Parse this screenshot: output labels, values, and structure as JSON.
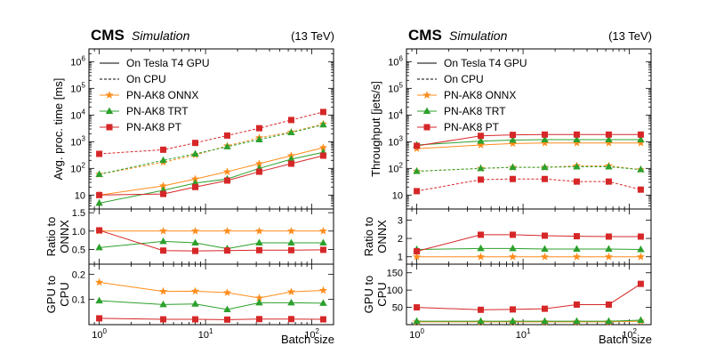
{
  "colors": {
    "onnx": "#ff8c1a",
    "trt": "#2ca02c",
    "pt": "#d62728",
    "axis": "#000000"
  },
  "legend": {
    "gpu": "On Tesla T4 GPU",
    "cpu": "On CPU",
    "onnx": "PN-AK8 ONNX",
    "trt": "PN-AK8 TRT",
    "pt": "PN-AK8 PT"
  },
  "chart_data": [
    {
      "type": "line",
      "header": {
        "experiment": "CMS",
        "label": "Simulation",
        "energy": "(13 TeV)"
      },
      "xlabel": "Batch size",
      "x": [
        1,
        4,
        8,
        16,
        32,
        64,
        128
      ],
      "xlim": [
        0.8,
        160
      ],
      "x_ticks": [
        "10^0",
        "10^1",
        "10^2"
      ],
      "panels": [
        {
          "ylabel": [
            "Avg. proc. time [ms]"
          ],
          "yscale": "log",
          "ylim": [
            3,
            3000000
          ],
          "yticks": [
            "10",
            "10^2",
            "10^3",
            "10^4",
            "10^5",
            "10^6"
          ],
          "series": [
            {
              "name": "PN-AK8 ONNX",
              "device": "gpu",
              "values": [
                10,
                22,
                40,
                75,
                150,
                300,
                600
              ]
            },
            {
              "name": "PN-AK8 TRT",
              "device": "gpu",
              "values": [
                5,
                15,
                28,
                40,
                100,
                220,
                400
              ]
            },
            {
              "name": "PN-AK8 PT",
              "device": "gpu",
              "values": [
                10,
                11,
                20,
                35,
                75,
                150,
                300
              ]
            },
            {
              "name": "PN-AK8 ONNX",
              "device": "cpu",
              "values": [
                60,
                170,
                320,
                700,
                1400,
                2300,
                4600
              ]
            },
            {
              "name": "PN-AK8 TRT",
              "device": "cpu",
              "values": [
                60,
                200,
                350,
                650,
                1200,
                2200,
                4300
              ]
            },
            {
              "name": "PN-AK8 PT",
              "device": "cpu",
              "values": [
                350,
                500,
                900,
                1700,
                3200,
                6500,
                13000
              ]
            }
          ]
        },
        {
          "ylabel": [
            "Ratio to",
            "ONNX"
          ],
          "yscale": "linear",
          "ylim": [
            0.1,
            1.6
          ],
          "yticks": [
            "0.5",
            "1.0",
            "1.5"
          ],
          "series": [
            {
              "name": "PN-AK8 ONNX",
              "values": [
                1.0,
                1.0,
                1.0,
                1.0,
                1.0,
                1.0,
                1.0
              ]
            },
            {
              "name": "PN-AK8 TRT",
              "values": [
                0.55,
                0.72,
                0.68,
                0.52,
                0.68,
                0.68,
                0.68
              ]
            },
            {
              "name": "PN-AK8 PT",
              "values": [
                1.02,
                0.47,
                0.46,
                0.47,
                0.48,
                0.48,
                0.49
              ]
            }
          ]
        },
        {
          "ylabel": [
            "GPU to",
            "CPU"
          ],
          "yscale": "linear",
          "ylim": [
            0.0,
            0.24
          ],
          "yticks": [
            "0.1",
            "0.2"
          ],
          "series": [
            {
              "name": "PN-AK8 ONNX",
              "values": [
                0.168,
                0.132,
                0.133,
                0.127,
                0.106,
                0.13,
                0.136
              ]
            },
            {
              "name": "PN-AK8 TRT",
              "values": [
                0.095,
                0.08,
                0.082,
                0.06,
                0.087,
                0.087,
                0.085
              ]
            },
            {
              "name": "PN-AK8 PT",
              "values": [
                0.025,
                0.021,
                0.021,
                0.02,
                0.022,
                0.022,
                0.021
              ]
            }
          ]
        }
      ]
    },
    {
      "type": "line",
      "header": {
        "experiment": "CMS",
        "label": "Simulation",
        "energy": "(13 TeV)"
      },
      "xlabel": "Batch size",
      "x": [
        1,
        4,
        8,
        16,
        32,
        64,
        128
      ],
      "xlim": [
        0.8,
        160
      ],
      "x_ticks": [
        "10^0",
        "10^1",
        "10^2"
      ],
      "panels": [
        {
          "ylabel": [
            "Throughput [jets/s]"
          ],
          "yscale": "log",
          "ylim": [
            3,
            3000000
          ],
          "yticks": [
            "10",
            "10^2",
            "10^3",
            "10^4",
            "10^5",
            "10^6"
          ],
          "series": [
            {
              "name": "PN-AK8 ONNX",
              "device": "gpu",
              "values": [
                550,
                750,
                850,
                900,
                900,
                900,
                900
              ]
            },
            {
              "name": "PN-AK8 TRT",
              "device": "gpu",
              "values": [
                750,
                1050,
                1150,
                1200,
                1200,
                1200,
                1200
              ]
            },
            {
              "name": "PN-AK8 PT",
              "device": "gpu",
              "values": [
                700,
                1650,
                1800,
                1850,
                1850,
                1850,
                1850
              ]
            },
            {
              "name": "PN-AK8 ONNX",
              "device": "cpu",
              "values": [
                78,
                100,
                110,
                110,
                125,
                125,
                90
              ]
            },
            {
              "name": "PN-AK8 TRT",
              "device": "cpu",
              "values": [
                78,
                100,
                110,
                110,
                115,
                115,
                90
              ]
            },
            {
              "name": "PN-AK8 PT",
              "device": "cpu",
              "values": [
                14,
                38,
                40,
                40,
                32,
                32,
                16
              ]
            }
          ]
        },
        {
          "ylabel": [
            "Ratio to",
            "ONNX"
          ],
          "yscale": "linear",
          "ylim": [
            0.6,
            3.6
          ],
          "yticks": [
            "1",
            "2",
            "3"
          ],
          "series": [
            {
              "name": "PN-AK8 ONNX",
              "values": [
                1.0,
                1.0,
                1.0,
                1.0,
                1.0,
                1.0,
                1.0
              ]
            },
            {
              "name": "PN-AK8 TRT",
              "values": [
                1.4,
                1.45,
                1.45,
                1.42,
                1.42,
                1.42,
                1.4
              ]
            },
            {
              "name": "PN-AK8 PT",
              "values": [
                1.3,
                2.2,
                2.2,
                2.15,
                2.12,
                2.1,
                2.1
              ]
            }
          ]
        },
        {
          "ylabel": [
            "GPU to",
            "CPU"
          ],
          "yscale": "linear",
          "ylim": [
            0,
            175
          ],
          "yticks": [
            "50",
            "100",
            "150"
          ],
          "series": [
            {
              "name": "PN-AK8 ONNX",
              "values": [
                8,
                8,
                8,
                8,
                8,
                8,
                10
              ]
            },
            {
              "name": "PN-AK8 TRT",
              "values": [
                10,
                10,
                10,
                10,
                10,
                10,
                13
              ]
            },
            {
              "name": "PN-AK8 PT",
              "values": [
                50,
                43,
                44,
                46,
                58,
                58,
                118
              ]
            }
          ]
        }
      ]
    }
  ]
}
